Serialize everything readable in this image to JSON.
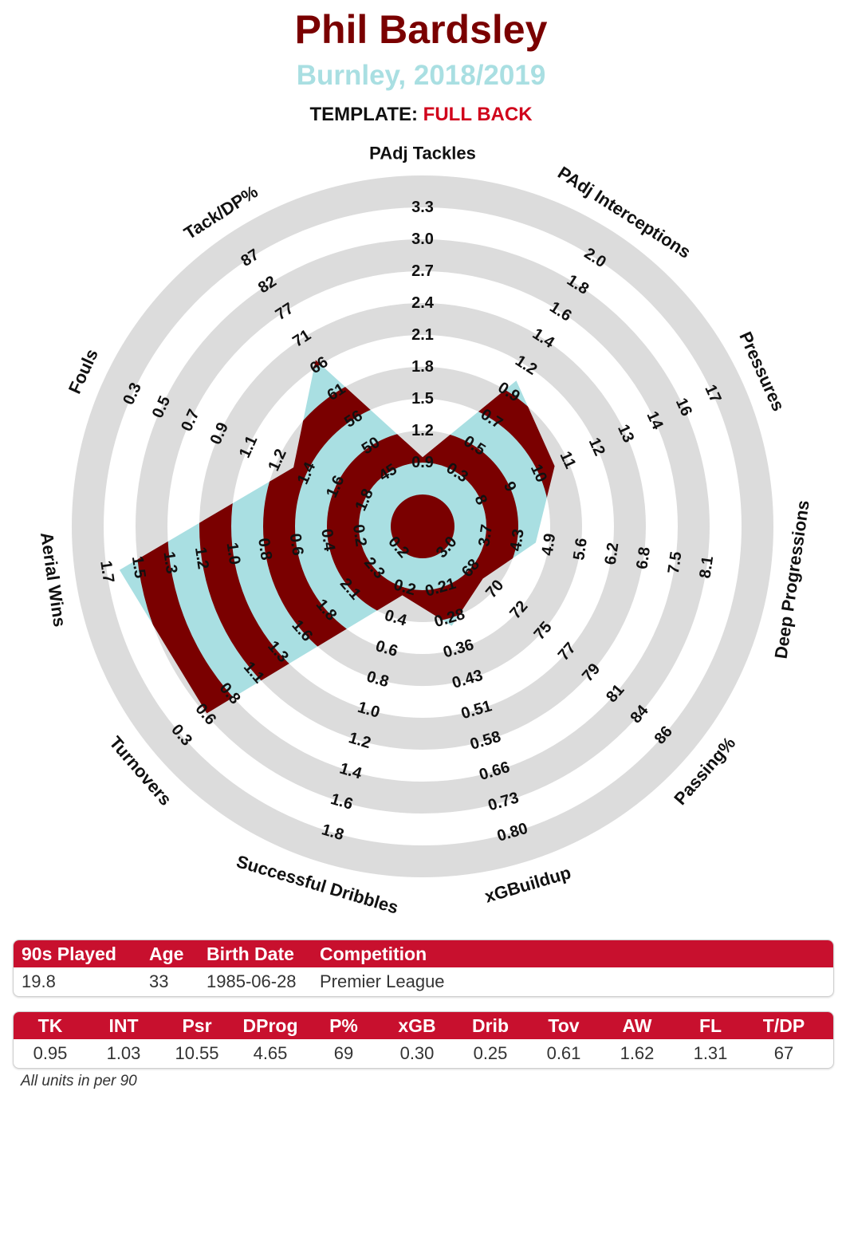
{
  "header": {
    "player_name": "Phil Bardsley",
    "team_season": "Burnley, 2018/2019",
    "template_label": "TEMPLATE:",
    "template_value": "FULL BACK"
  },
  "colors": {
    "title": "#7a0000",
    "subtitle": "#a9dfe2",
    "accent_red": "#c8102e",
    "band_dark": "#7a0000",
    "band_light": "#a9dfe2",
    "ring_grey": "#dcdcdc"
  },
  "chart_data": {
    "type": "radar",
    "metrics": [
      {
        "label": "PAdj Tackles",
        "ticks": [
          "0.9",
          "1.2",
          "1.5",
          "1.8",
          "2.1",
          "2.4",
          "2.7",
          "3.0",
          "3.3"
        ],
        "value": 0.95
      },
      {
        "label": "PAdj Interceptions",
        "ticks": [
          "0.3",
          "0.5",
          "0.7",
          "0.9",
          "1.2",
          "1.4",
          "1.6",
          "1.8",
          "2.0"
        ],
        "value": 1.03
      },
      {
        "label": "Pressures",
        "ticks": [
          "8",
          "9",
          "10",
          "11",
          "12",
          "13",
          "14",
          "16",
          "17"
        ],
        "value": 10.55
      },
      {
        "label": "Deep Progressions",
        "ticks": [
          "3.7",
          "4.3",
          "4.9",
          "5.6",
          "6.2",
          "6.8",
          "7.5",
          "8.1"
        ],
        "value": 4.65
      },
      {
        "label": "Passing%",
        "ticks": [
          "68",
          "70",
          "72",
          "75",
          "77",
          "79",
          "81",
          "84",
          "86"
        ],
        "value": 69
      },
      {
        "label": "xGBuildup",
        "ticks": [
          "0.21",
          "0.28",
          "0.36",
          "0.43",
          "0.51",
          "0.58",
          "0.66",
          "0.73",
          "0.80"
        ],
        "value": 0.3
      },
      {
        "label": "Successful Dribbles",
        "ticks": [
          "0.2",
          "0.4",
          "0.6",
          "0.8",
          "1.0",
          "1.2",
          "1.4",
          "1.6",
          "1.8"
        ],
        "value": 0.25
      },
      {
        "label": "Turnovers",
        "ticks": [
          "2.3",
          "2.1",
          "1.8",
          "1.6",
          "1.3",
          "1.1",
          "0.8",
          "0.6",
          "0.3"
        ],
        "value": 0.61
      },
      {
        "label": "Aerial Wins",
        "ticks": [
          "0.2",
          "0.4",
          "0.6",
          "0.8",
          "1.0",
          "1.2",
          "1.3",
          "1.5",
          "1.7"
        ],
        "value": 1.62
      },
      {
        "label": "Fouls",
        "ticks": [
          "1.8",
          "1.6",
          "1.4",
          "1.2",
          "1.1",
          "0.9",
          "0.7",
          "0.5",
          "0.3"
        ],
        "value": 1.31
      },
      {
        "label": "Tack/DP%",
        "ticks": [
          "45",
          "50",
          "56",
          "61",
          "66",
          "71",
          "77",
          "82",
          "87"
        ],
        "value": 67
      }
    ],
    "inner_tick_labels": [
      "3.0",
      "0.2"
    ]
  },
  "info_table": {
    "headers": [
      "90s Played",
      "Age",
      "Birth Date",
      "Competition"
    ],
    "values": [
      "19.8",
      "33",
      "1985-06-28",
      "Premier League"
    ]
  },
  "stats_table": {
    "headers": [
      "TK",
      "INT",
      "Psr",
      "DProg",
      "P%",
      "xGB",
      "Drib",
      "Tov",
      "AW",
      "FL",
      "T/DP"
    ],
    "values": [
      "0.95",
      "1.03",
      "10.55",
      "4.65",
      "69",
      "0.30",
      "0.25",
      "0.61",
      "1.62",
      "1.31",
      "67"
    ]
  },
  "footnote": "All units in per 90"
}
